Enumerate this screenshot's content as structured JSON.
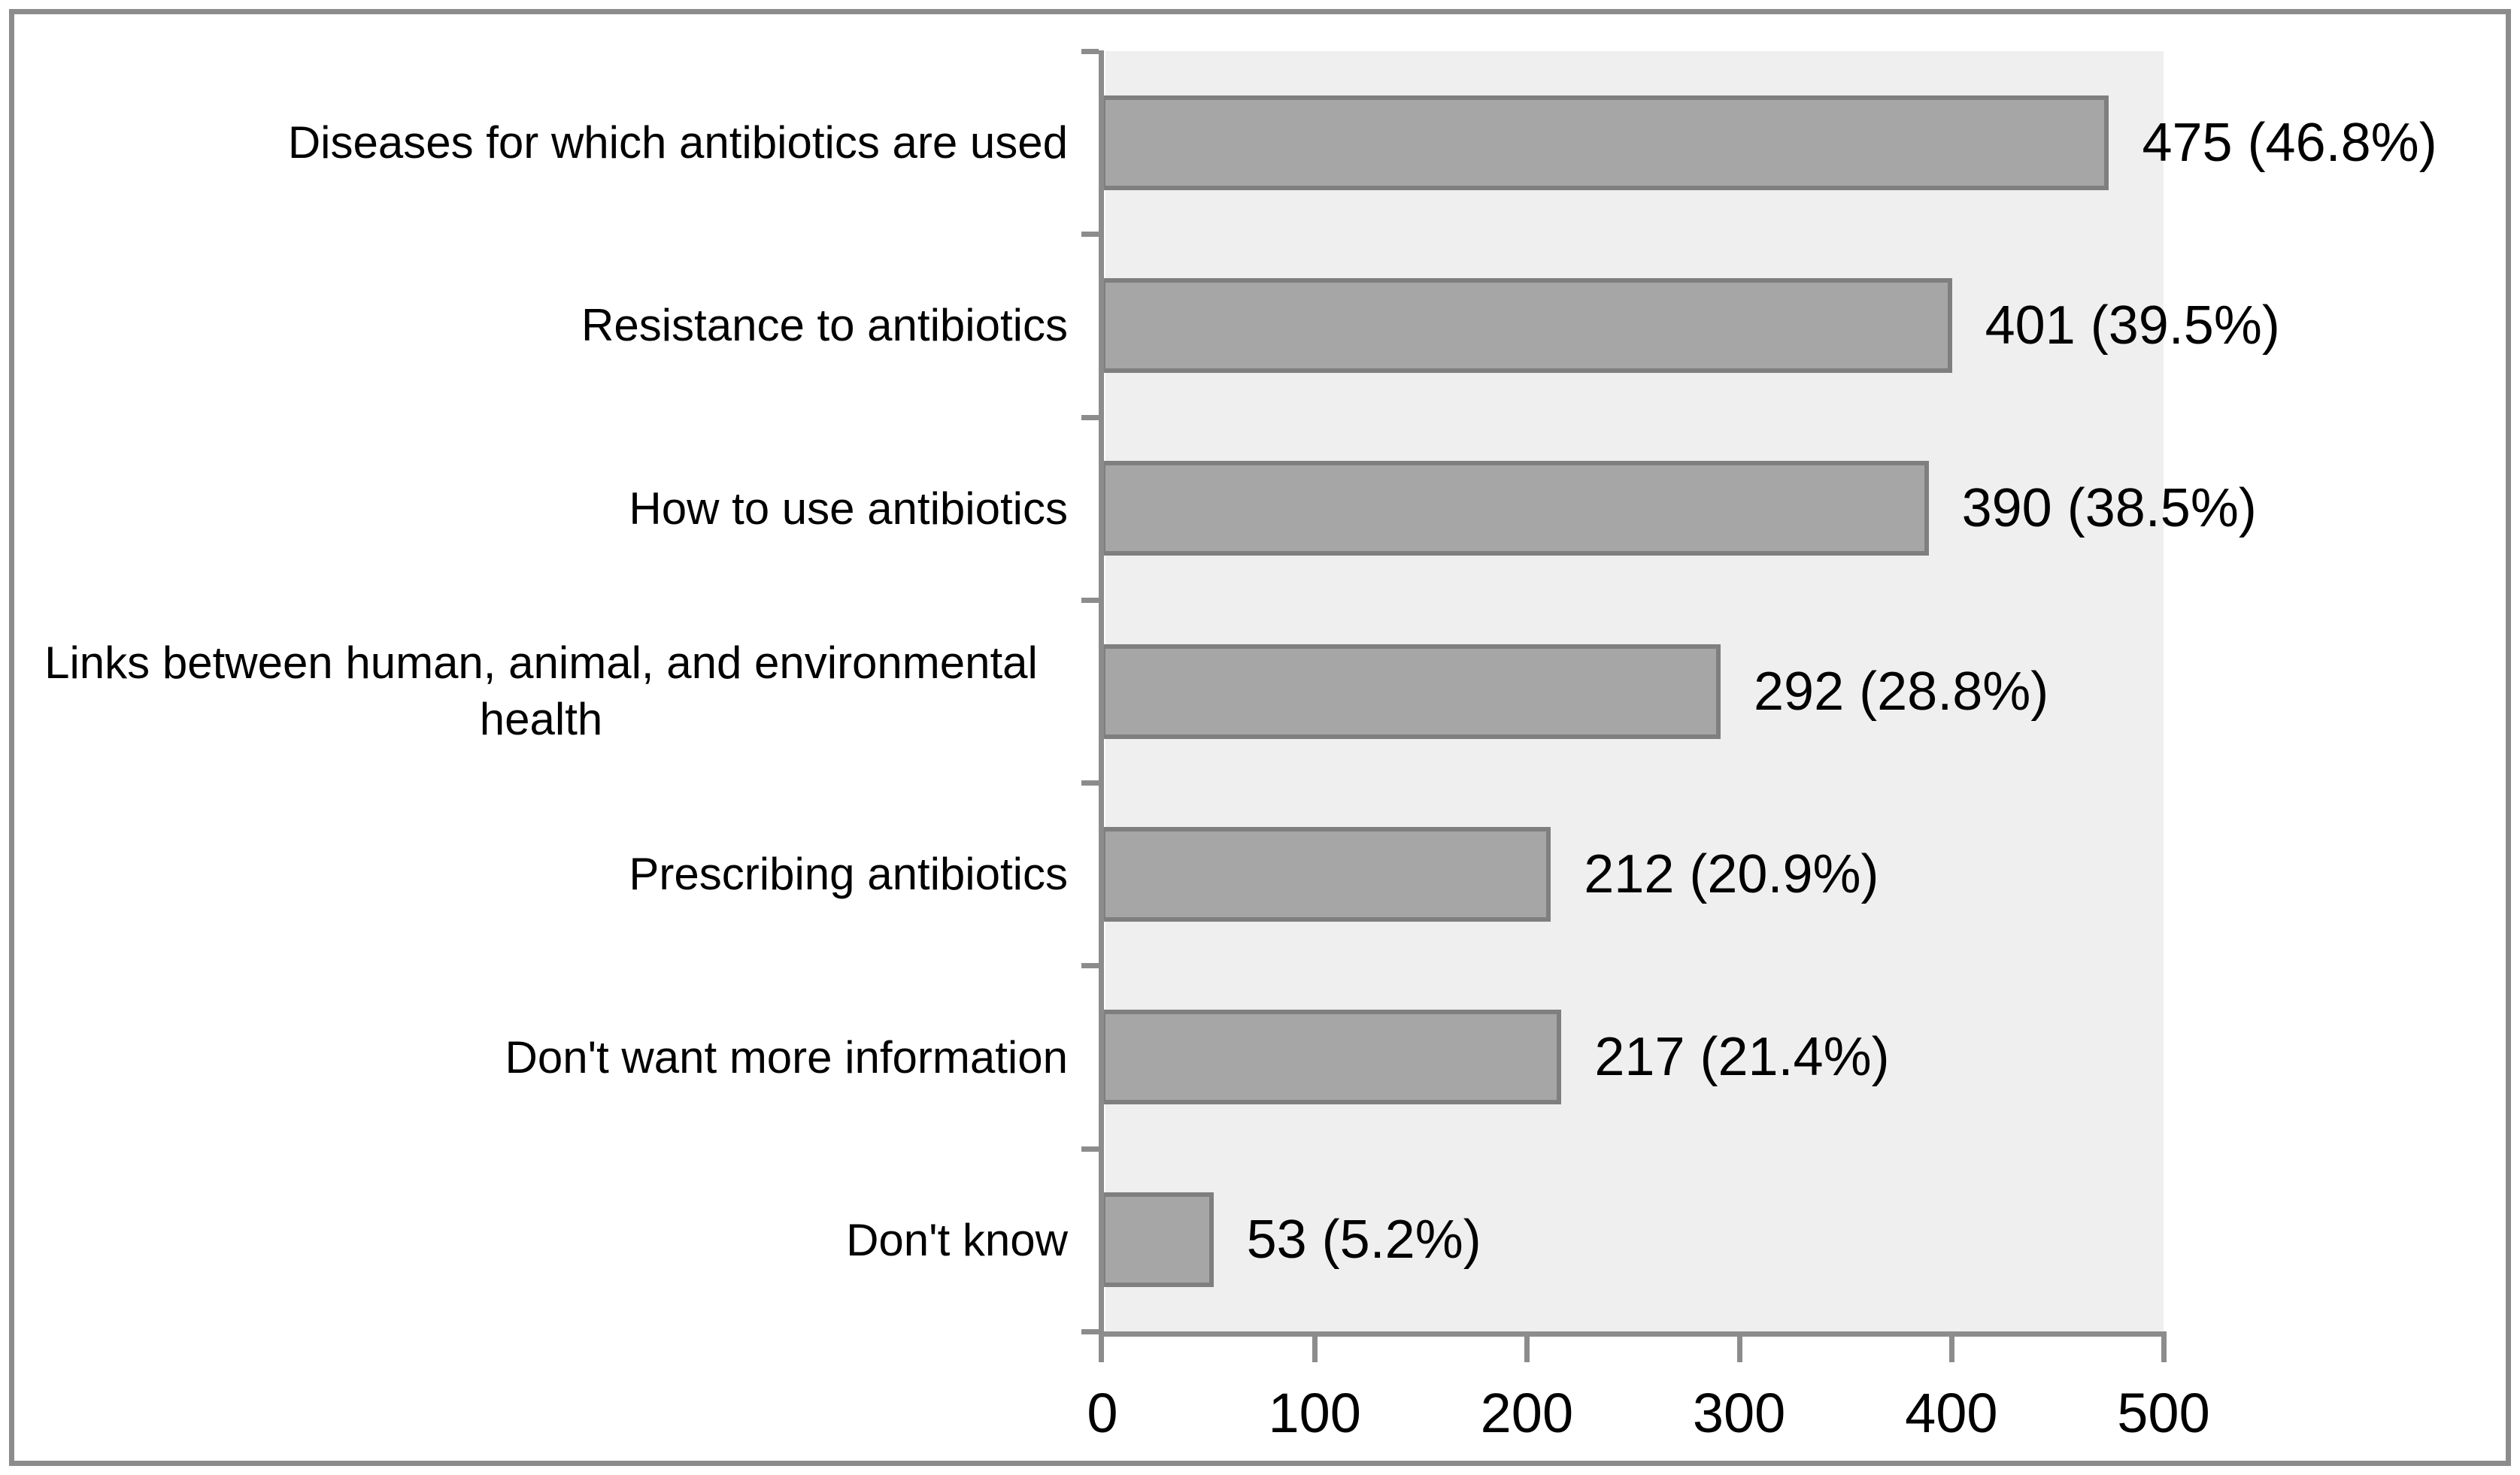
{
  "chart_data": {
    "type": "bar",
    "orientation": "horizontal",
    "title": "",
    "xlabel": "",
    "ylabel": "",
    "categories": [
      "Diseases for which antibiotics are used",
      "Resistance to antibiotics",
      "How to use antibiotics",
      "Links between human, animal, and environmental health",
      "Prescribing antibiotics",
      "Don't want more information",
      "Don't know"
    ],
    "values": [
      475,
      401,
      390,
      292,
      212,
      217,
      53
    ],
    "percentages": [
      46.8,
      39.5,
      38.5,
      28.8,
      20.9,
      21.4,
      5.2
    ],
    "data_labels": [
      "475 (46.8%)",
      "401 (39.5%)",
      "390 (38.5%)",
      "292 (28.8%)",
      "212 (20.9%)",
      "217 (21.4%)",
      "53 (5.2%)"
    ],
    "xlim": [
      0,
      500
    ],
    "x_ticks": [
      0,
      100,
      200,
      300,
      400,
      500
    ],
    "x_tick_labels": [
      "0",
      "100",
      "200",
      "300",
      "400",
      "500"
    ],
    "grid": "off",
    "legend": "none",
    "colors": {
      "bar_fill": "#a6a6a6",
      "bar_border": "#7f7f7f",
      "plot_background": "#efefef",
      "axis": "#8c8c8c",
      "figure_border": "#8c8c8c",
      "text": "#000000",
      "figure_background": "#ffffff"
    }
  }
}
